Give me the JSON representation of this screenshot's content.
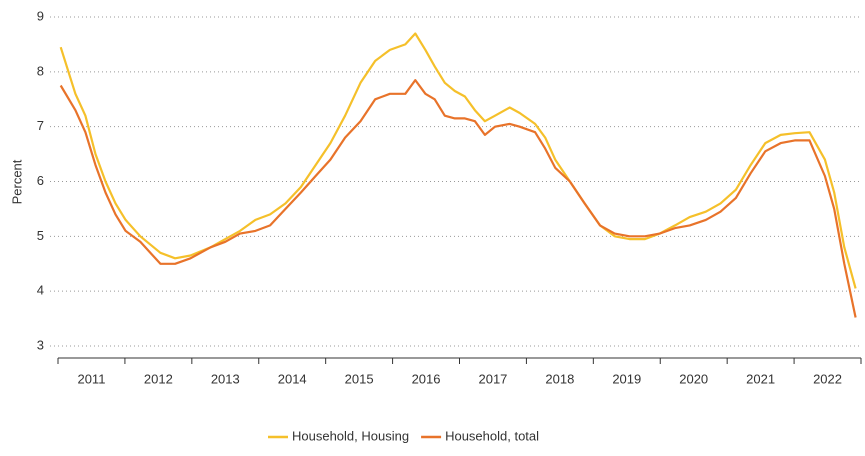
{
  "chart_data": {
    "type": "line",
    "ylabel": "Percent",
    "x": [
      2011.04,
      2011.26,
      2011.41,
      2011.56,
      2011.71,
      2011.86,
      2012.01,
      2012.23,
      2012.53,
      2012.75,
      2012.98,
      2013.28,
      2013.5,
      2013.72,
      2013.95,
      2014.17,
      2014.4,
      2014.63,
      2014.85,
      2015.07,
      2015.29,
      2015.52,
      2015.74,
      2015.96,
      2016.19,
      2016.34,
      2016.49,
      2016.63,
      2016.78,
      2016.93,
      2017.08,
      2017.23,
      2017.38,
      2017.53,
      2017.75,
      2017.9,
      2018.13,
      2018.28,
      2018.43,
      2018.65,
      2018.87,
      2019.1,
      2019.32,
      2019.54,
      2019.77,
      2019.99,
      2020.22,
      2020.44,
      2020.68,
      2020.9,
      2021.13,
      2021.35,
      2021.57,
      2021.8,
      2022.01,
      2022.23,
      2022.46,
      2022.6,
      2022.75,
      2022.92
    ],
    "series": [
      {
        "name": "Household, Housing",
        "color": "#f5c02a",
        "values": [
          8.45,
          7.6,
          7.2,
          6.5,
          6.0,
          5.6,
          5.3,
          5.0,
          4.7,
          4.6,
          4.65,
          4.8,
          4.95,
          5.1,
          5.3,
          5.4,
          5.6,
          5.9,
          6.3,
          6.7,
          7.2,
          7.8,
          8.2,
          8.4,
          8.5,
          8.7,
          8.4,
          8.1,
          7.8,
          7.65,
          7.55,
          7.3,
          7.1,
          7.2,
          7.35,
          7.25,
          7.05,
          6.8,
          6.4,
          6.0,
          5.6,
          5.2,
          5.0,
          4.95,
          4.95,
          5.05,
          5.2,
          5.35,
          5.45,
          5.6,
          5.85,
          6.3,
          6.7,
          6.85,
          6.88,
          6.9,
          6.4,
          5.8,
          4.8,
          4.05
        ]
      },
      {
        "name": "Household, total",
        "color": "#e8732a",
        "values": [
          7.75,
          7.3,
          6.9,
          6.3,
          5.8,
          5.4,
          5.1,
          4.9,
          4.5,
          4.5,
          4.6,
          4.8,
          4.9,
          5.05,
          5.1,
          5.2,
          5.5,
          5.8,
          6.1,
          6.4,
          6.8,
          7.1,
          7.5,
          7.6,
          7.6,
          7.85,
          7.6,
          7.5,
          7.2,
          7.15,
          7.15,
          7.1,
          6.85,
          7.0,
          7.05,
          7.0,
          6.9,
          6.6,
          6.25,
          6.0,
          5.6,
          5.2,
          5.05,
          5.0,
          5.0,
          5.05,
          5.15,
          5.2,
          5.3,
          5.45,
          5.7,
          6.15,
          6.55,
          6.7,
          6.75,
          6.75,
          6.1,
          5.5,
          4.5,
          3.52
        ]
      }
    ],
    "xlim": [
      2011,
      2023
    ],
    "xtick_marks": [
      2011,
      2012,
      2013,
      2014,
      2015,
      2016,
      2017,
      2018,
      2019,
      2020,
      2021,
      2022,
      2023
    ],
    "xticks": [
      {
        "value": 2011.5,
        "label": "2011"
      },
      {
        "value": 2012.5,
        "label": "2012"
      },
      {
        "value": 2013.5,
        "label": "2013"
      },
      {
        "value": 2014.5,
        "label": "2014"
      },
      {
        "value": 2015.5,
        "label": "2015"
      },
      {
        "value": 2016.5,
        "label": "2016"
      },
      {
        "value": 2017.5,
        "label": "2017"
      },
      {
        "value": 2018.5,
        "label": "2018"
      },
      {
        "value": 2019.5,
        "label": "2019"
      },
      {
        "value": 2020.5,
        "label": "2020"
      },
      {
        "value": 2021.5,
        "label": "2021"
      },
      {
        "value": 2022.5,
        "label": "2022"
      }
    ],
    "ylim": [
      3,
      9
    ],
    "yticks": [
      3,
      4,
      5,
      6,
      7,
      8,
      9
    ],
    "grid": true,
    "legend": "bottom"
  }
}
